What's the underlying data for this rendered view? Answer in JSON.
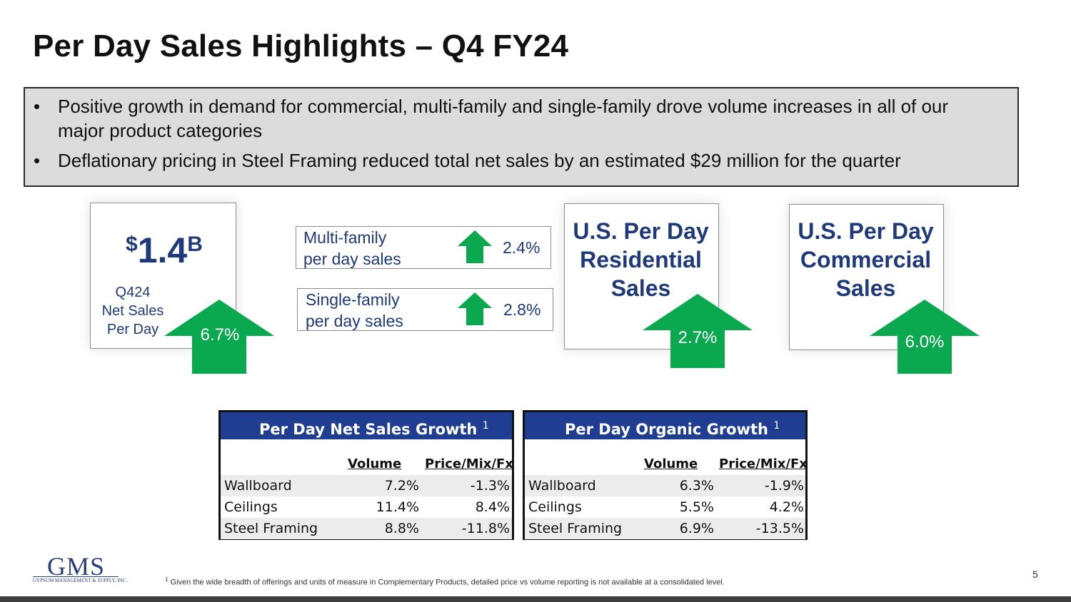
{
  "title": "Per Day Sales Highlights – Q4 FY24",
  "highlights": [
    "Positive growth in demand for commercial, multi-family and single-family drove volume increases in all of our major product categories",
    "Deflationary pricing in Steel Framing reduced total net sales by an estimated $29 million for the quarter"
  ],
  "net_sales": {
    "currency": "$",
    "value": "1.4",
    "unit": "B",
    "label_line1": "Q424",
    "label_line2": "Net Sales",
    "label_line3": "Per Day",
    "growth": "6.7%"
  },
  "multi_family": {
    "label_line1": "Multi-family",
    "label_line2": "per day sales",
    "value": "2.4%"
  },
  "single_family": {
    "label_line1": "Single-family",
    "label_line2": "per day sales",
    "value": "2.8%"
  },
  "residential": {
    "line1": "U.S. Per Day",
    "line2": "Residential",
    "line3": "Sales",
    "growth": "2.7%"
  },
  "commercial": {
    "line1": "U.S. Per Day",
    "line2": "Commercial",
    "line3": "Sales",
    "growth": "6.0%"
  },
  "colors": {
    "arrow_green": "#0aa84f",
    "navy": "#1f3a7a",
    "table_header": "#1f3e91"
  },
  "net_growth_table": {
    "title": "Per Day Net Sales Growth",
    "footnote_ref": "1",
    "col1": "Volume",
    "col2": "Price/Mix/Fx",
    "rows": [
      {
        "category": "Wallboard",
        "volume": "7.2%",
        "price": "-1.3%"
      },
      {
        "category": "Ceilings",
        "volume": "11.4%",
        "price": "8.4%"
      },
      {
        "category": "Steel Framing",
        "volume": "8.8%",
        "price": "-11.8%"
      }
    ]
  },
  "organic_table": {
    "title": "Per Day Organic Growth",
    "footnote_ref": "1",
    "col1": "Volume",
    "col2": "Price/Mix/Fx",
    "rows": [
      {
        "category": "Wallboard",
        "volume": "6.3%",
        "price": "-1.9%"
      },
      {
        "category": "Ceilings",
        "volume": "5.5%",
        "price": "4.2%"
      },
      {
        "category": "Steel Framing",
        "volume": "6.9%",
        "price": "-13.5%"
      }
    ]
  },
  "footnote": {
    "marker": "1",
    "text": "Given the wide breadth of offerings and units of measure in Complementary Products, detailed price vs volume reporting is not available at a consolidated level."
  },
  "page_number": "5",
  "logo": {
    "name": "GMS",
    "tagline": "GYPSUM MANAGEMENT & SUPPLY, INC."
  }
}
